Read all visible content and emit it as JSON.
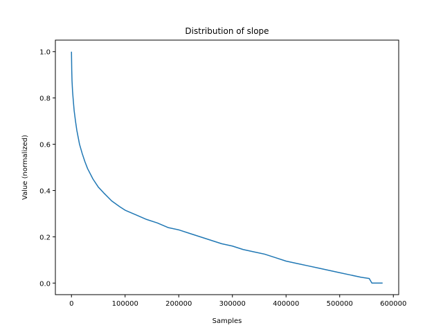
{
  "chart_data": {
    "type": "line",
    "title": "Distribution of slope",
    "xlabel": "Samples",
    "ylabel": "Value (normalized)",
    "xlim": [
      -30000,
      610000
    ],
    "ylim": [
      -0.05,
      1.05
    ],
    "x_ticks": [
      0,
      100000,
      200000,
      300000,
      400000,
      500000,
      600000
    ],
    "x_tick_labels": [
      "0",
      "100000",
      "200000",
      "300000",
      "400000",
      "500000",
      "600000"
    ],
    "y_ticks": [
      0.0,
      0.2,
      0.4,
      0.6,
      0.8,
      1.0
    ],
    "y_tick_labels": [
      "0.0",
      "0.2",
      "0.4",
      "0.6",
      "0.8",
      "1.0"
    ],
    "grid": false,
    "legend": "none",
    "series": [
      {
        "color": "#1f77b4",
        "x": [
          0,
          500,
          1000,
          2000,
          3000,
          5000,
          7500,
          10000,
          15000,
          20000,
          25000,
          30000,
          40000,
          50000,
          60000,
          75000,
          90000,
          100000,
          120000,
          140000,
          160000,
          180000,
          200000,
          220000,
          240000,
          260000,
          280000,
          300000,
          320000,
          340000,
          360000,
          380000,
          400000,
          420000,
          440000,
          460000,
          480000,
          500000,
          520000,
          540000,
          555000,
          560000,
          580000
        ],
        "y": [
          1.0,
          0.92,
          0.875,
          0.83,
          0.8,
          0.745,
          0.7,
          0.66,
          0.6,
          0.56,
          0.525,
          0.495,
          0.45,
          0.415,
          0.39,
          0.355,
          0.33,
          0.315,
          0.295,
          0.275,
          0.26,
          0.24,
          0.23,
          0.215,
          0.2,
          0.185,
          0.17,
          0.16,
          0.145,
          0.135,
          0.125,
          0.11,
          0.095,
          0.085,
          0.075,
          0.065,
          0.055,
          0.045,
          0.035,
          0.025,
          0.02,
          0.0,
          0.0
        ]
      }
    ]
  }
}
